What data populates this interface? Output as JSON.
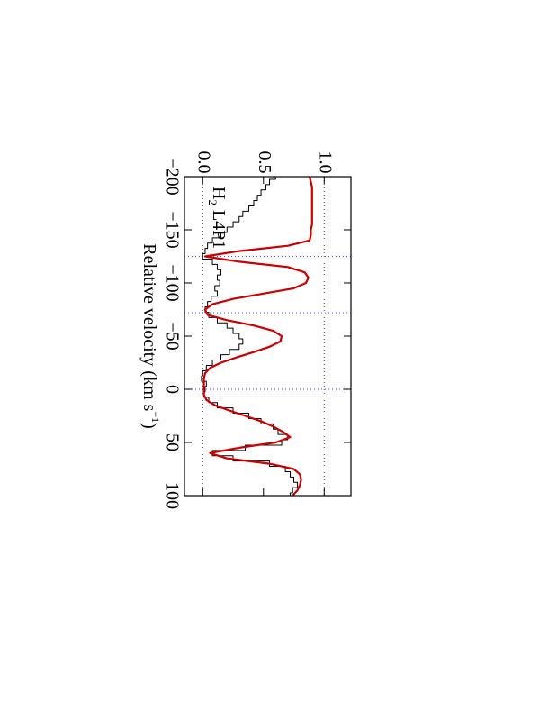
{
  "chart_data": {
    "type": "line",
    "annotation_parts": [
      "H",
      "2",
      "L4P1"
    ],
    "xlabel_parts": [
      "Relative velocity (km s",
      "−1",
      ")"
    ],
    "x": [
      -200,
      -195,
      -190,
      -185,
      -180,
      -175,
      -170,
      -165,
      -160,
      -155,
      -150,
      -145,
      -140,
      -135,
      -130,
      -125,
      -120,
      -115,
      -110,
      -105,
      -100,
      -95,
      -90,
      -85,
      -80,
      -75,
      -70,
      -65,
      -60,
      -55,
      -50,
      -45,
      -40,
      -35,
      -30,
      -25,
      -20,
      -15,
      -10,
      -5,
      0,
      5,
      10,
      15,
      20,
      25,
      30,
      35,
      40,
      45,
      50,
      55,
      60,
      65,
      70,
      75,
      80,
      85,
      90,
      95,
      100
    ],
    "series": [
      {
        "color": "#000000",
        "style": "step",
        "values": [
          0.6,
          0.55,
          0.52,
          0.48,
          0.45,
          0.42,
          0.38,
          0.33,
          0.3,
          0.25,
          0.2,
          0.15,
          0.08,
          0.04,
          0.02,
          0.0,
          0.08,
          0.12,
          0.15,
          0.12,
          0.14,
          0.1,
          0.12,
          0.07,
          0.04,
          0.02,
          0.05,
          0.12,
          0.2,
          0.25,
          0.3,
          0.33,
          0.3,
          0.22,
          0.15,
          0.08,
          0.03,
          0.0,
          -0.01,
          0.03,
          0.02,
          0.01,
          0.05,
          0.12,
          0.25,
          0.38,
          0.48,
          0.58,
          0.62,
          0.7,
          0.65,
          0.35,
          0.08,
          0.25,
          0.55,
          0.68,
          0.72,
          0.75,
          0.78,
          0.74,
          0.72
        ]
      },
      {
        "color": "#cc0000",
        "style": "smooth",
        "values": [
          0.88,
          0.89,
          0.9,
          0.9,
          0.9,
          0.9,
          0.9,
          0.9,
          0.9,
          0.9,
          0.89,
          0.89,
          0.88,
          0.7,
          0.3,
          0.02,
          0.3,
          0.7,
          0.84,
          0.87,
          0.85,
          0.75,
          0.5,
          0.25,
          0.08,
          0.02,
          0.04,
          0.2,
          0.42,
          0.58,
          0.65,
          0.64,
          0.55,
          0.42,
          0.28,
          0.15,
          0.06,
          0.02,
          0.01,
          0.01,
          0.01,
          0.01,
          0.03,
          0.1,
          0.22,
          0.35,
          0.48,
          0.58,
          0.66,
          0.72,
          0.6,
          0.3,
          0.06,
          0.2,
          0.55,
          0.75,
          0.8,
          0.81,
          0.8,
          0.78,
          0.74
        ]
      }
    ],
    "xlim": [
      -200,
      100
    ],
    "xticks": [
      {
        "value": -200,
        "label": "−200"
      },
      {
        "value": -150,
        "label": "−150"
      },
      {
        "value": -100,
        "label": "−100"
      },
      {
        "value": -50,
        "label": "−50"
      },
      0,
      50,
      100
    ],
    "ylim": [
      -0.15,
      1.22
    ],
    "yticks": [
      {
        "value": 0,
        "label": "0.0"
      },
      0.5,
      {
        "value": 1,
        "label": "1.0"
      }
    ],
    "vlines": [
      -125,
      -72,
      0
    ],
    "vline_color": "#6666ff",
    "hlines": [
      0,
      1
    ],
    "hline_color": "#666666",
    "rotation": 90
  }
}
